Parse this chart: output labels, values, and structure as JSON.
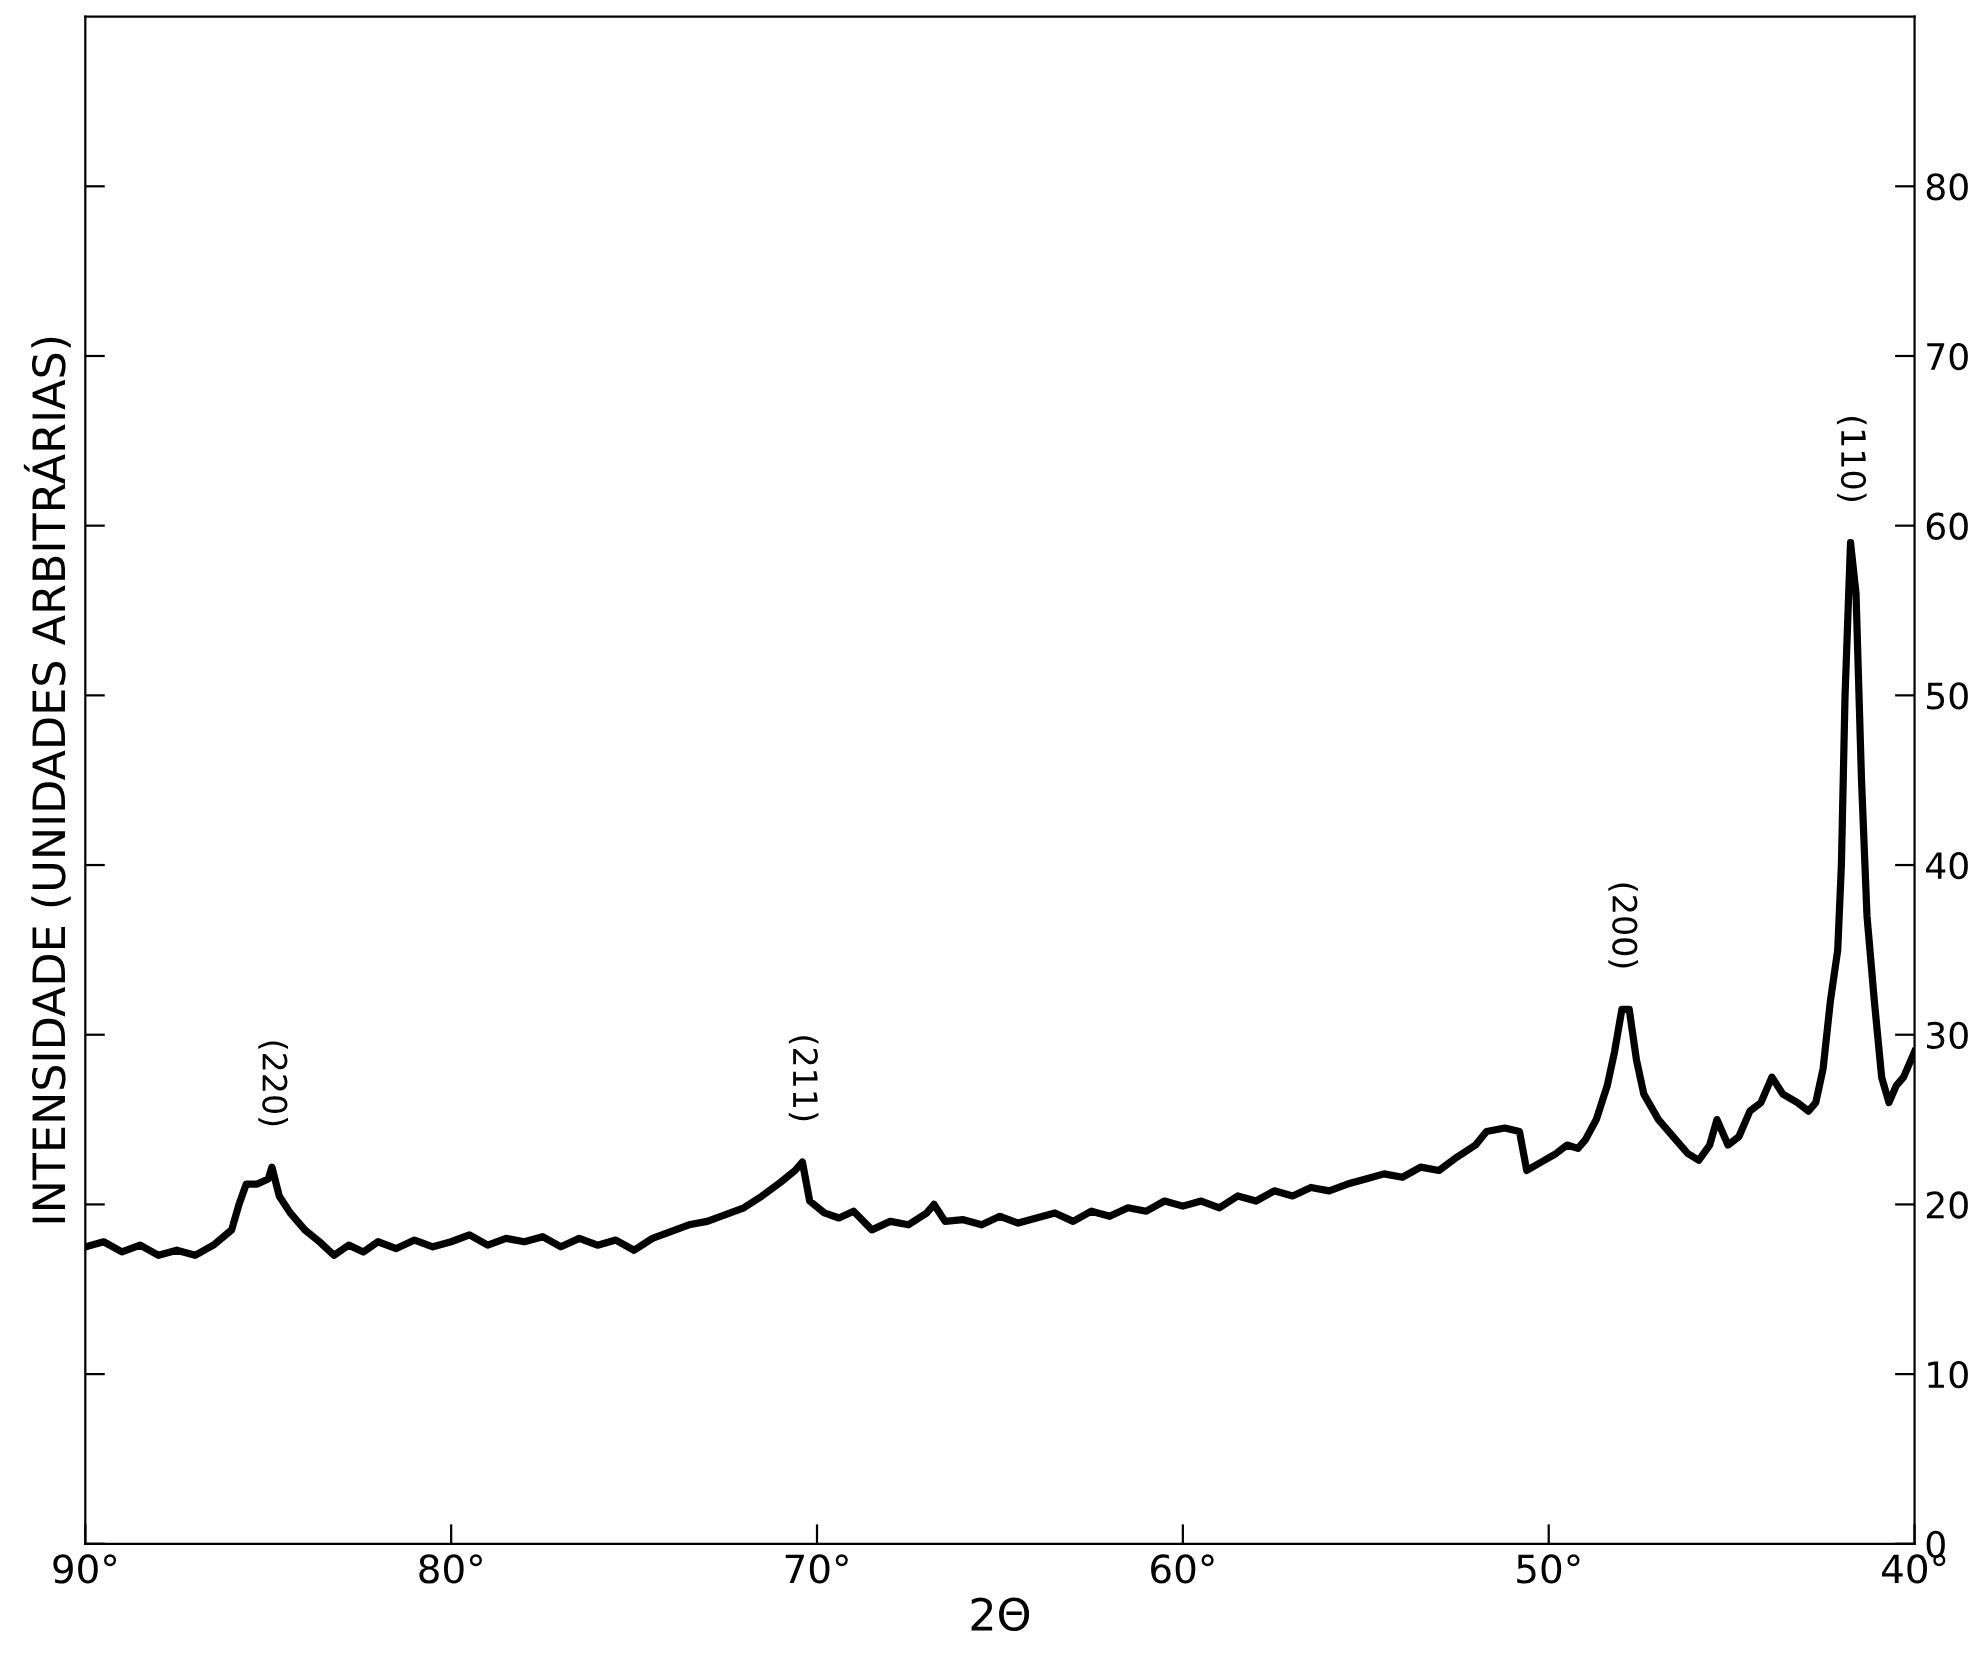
{
  "chart_data": {
    "type": "line",
    "xlabel": "2Θ",
    "ylabel": "INTENSIDADE (UNIDADES ARBITRÁRIAS)",
    "xlim": [
      90,
      40
    ],
    "ylim": [
      0,
      90
    ],
    "xticks": [
      {
        "value": 90,
        "label": "90°"
      },
      {
        "value": 80,
        "label": "80°"
      },
      {
        "value": 70,
        "label": "70°"
      },
      {
        "value": 60,
        "label": "60°"
      },
      {
        "value": 50,
        "label": "50°"
      },
      {
        "value": 40,
        "label": "40°"
      }
    ],
    "yticks": [
      0,
      10,
      20,
      30,
      40,
      50,
      60,
      70,
      80
    ],
    "grid": false,
    "legend": false,
    "marker": "none",
    "line_style": "solid",
    "annotations": [
      {
        "text": "(220)",
        "x": 84.9,
        "y": 22.2
      },
      {
        "text": "(211)",
        "x": 70.4,
        "y": 22.5
      },
      {
        "text": "(200)",
        "x": 48.0,
        "y": 31.5
      },
      {
        "text": "(110)",
        "x": 41.75,
        "y": 59.0
      }
    ],
    "series": [
      {
        "color": "#000000",
        "x": [
          90,
          89.5,
          89,
          88.5,
          88,
          87.5,
          87,
          86.5,
          86,
          85.8,
          85.6,
          85.3,
          85.0,
          84.9,
          84.7,
          84.4,
          84,
          83.6,
          83.2,
          82.8,
          82.4,
          82,
          81.5,
          81,
          80.5,
          80,
          79.5,
          79,
          78.5,
          78,
          77.5,
          77,
          76.5,
          76,
          75.5,
          75,
          74.5,
          74,
          73.5,
          73,
          72.5,
          72,
          71.5,
          71.0,
          70.6,
          70.4,
          70.2,
          69.8,
          69.4,
          69,
          68.5,
          68,
          67.5,
          67,
          66.8,
          66.5,
          66,
          65.5,
          65,
          64.5,
          64,
          63.5,
          63,
          62.5,
          62,
          61.5,
          61,
          60.5,
          60,
          59.5,
          59,
          58.5,
          58,
          57.5,
          57,
          56.5,
          56,
          55.5,
          55,
          54.5,
          54,
          53.5,
          53,
          52.5,
          52,
          51.7,
          51.2,
          50.8,
          50.6,
          50.2,
          49.8,
          49.5,
          49.2,
          49.0,
          48.7,
          48.4,
          48.2,
          48.0,
          47.8,
          47.6,
          47.4,
          47.0,
          46.6,
          46.2,
          45.9,
          45.6,
          45.4,
          45.1,
          44.8,
          44.5,
          44.2,
          43.9,
          43.6,
          43.2,
          42.9,
          42.7,
          42.5,
          42.3,
          42.1,
          42.0,
          41.9,
          41.75,
          41.6,
          41.45,
          41.3,
          41.1,
          40.9,
          40.7,
          40.5,
          40.3,
          40.1,
          40.0
        ],
        "values": [
          17.5,
          17.8,
          17.2,
          17.6,
          17.0,
          17.3,
          17.0,
          17.6,
          18.5,
          20,
          21.2,
          21.2,
          21.5,
          22.2,
          20.5,
          19.5,
          18.5,
          17.8,
          17.0,
          17.6,
          17.2,
          17.8,
          17.4,
          17.9,
          17.5,
          17.8,
          18.2,
          17.6,
          18.0,
          17.8,
          18.1,
          17.5,
          18.0,
          17.6,
          17.9,
          17.3,
          18.0,
          18.4,
          18.8,
          19.0,
          19.4,
          19.8,
          20.5,
          21.3,
          22.0,
          22.5,
          20.2,
          19.5,
          19.2,
          19.6,
          18.5,
          19.0,
          18.8,
          19.5,
          20.0,
          19.0,
          19.1,
          18.8,
          19.3,
          18.9,
          19.2,
          19.5,
          19.0,
          19.6,
          19.3,
          19.8,
          19.6,
          20.2,
          19.9,
          20.2,
          19.8,
          20.5,
          20.2,
          20.8,
          20.5,
          21.0,
          20.8,
          21.2,
          21.5,
          21.8,
          21.6,
          22.2,
          22.0,
          22.8,
          23.5,
          24.3,
          24.5,
          24.3,
          22.0,
          22.5,
          23.0,
          23.5,
          23.3,
          23.8,
          25.0,
          27.0,
          29.0,
          31.5,
          31.5,
          28.5,
          26.5,
          25.0,
          24.0,
          23.0,
          22.6,
          23.5,
          25.0,
          23.5,
          24.0,
          25.5,
          26.0,
          27.5,
          26.5,
          26.0,
          25.5,
          26.0,
          28.0,
          32.0,
          35.0,
          40.0,
          50.0,
          59.0,
          56.0,
          45.0,
          37.0,
          32.0,
          27.5,
          26.0,
          27.0,
          27.5,
          28.5,
          29.0
        ]
      }
    ]
  }
}
